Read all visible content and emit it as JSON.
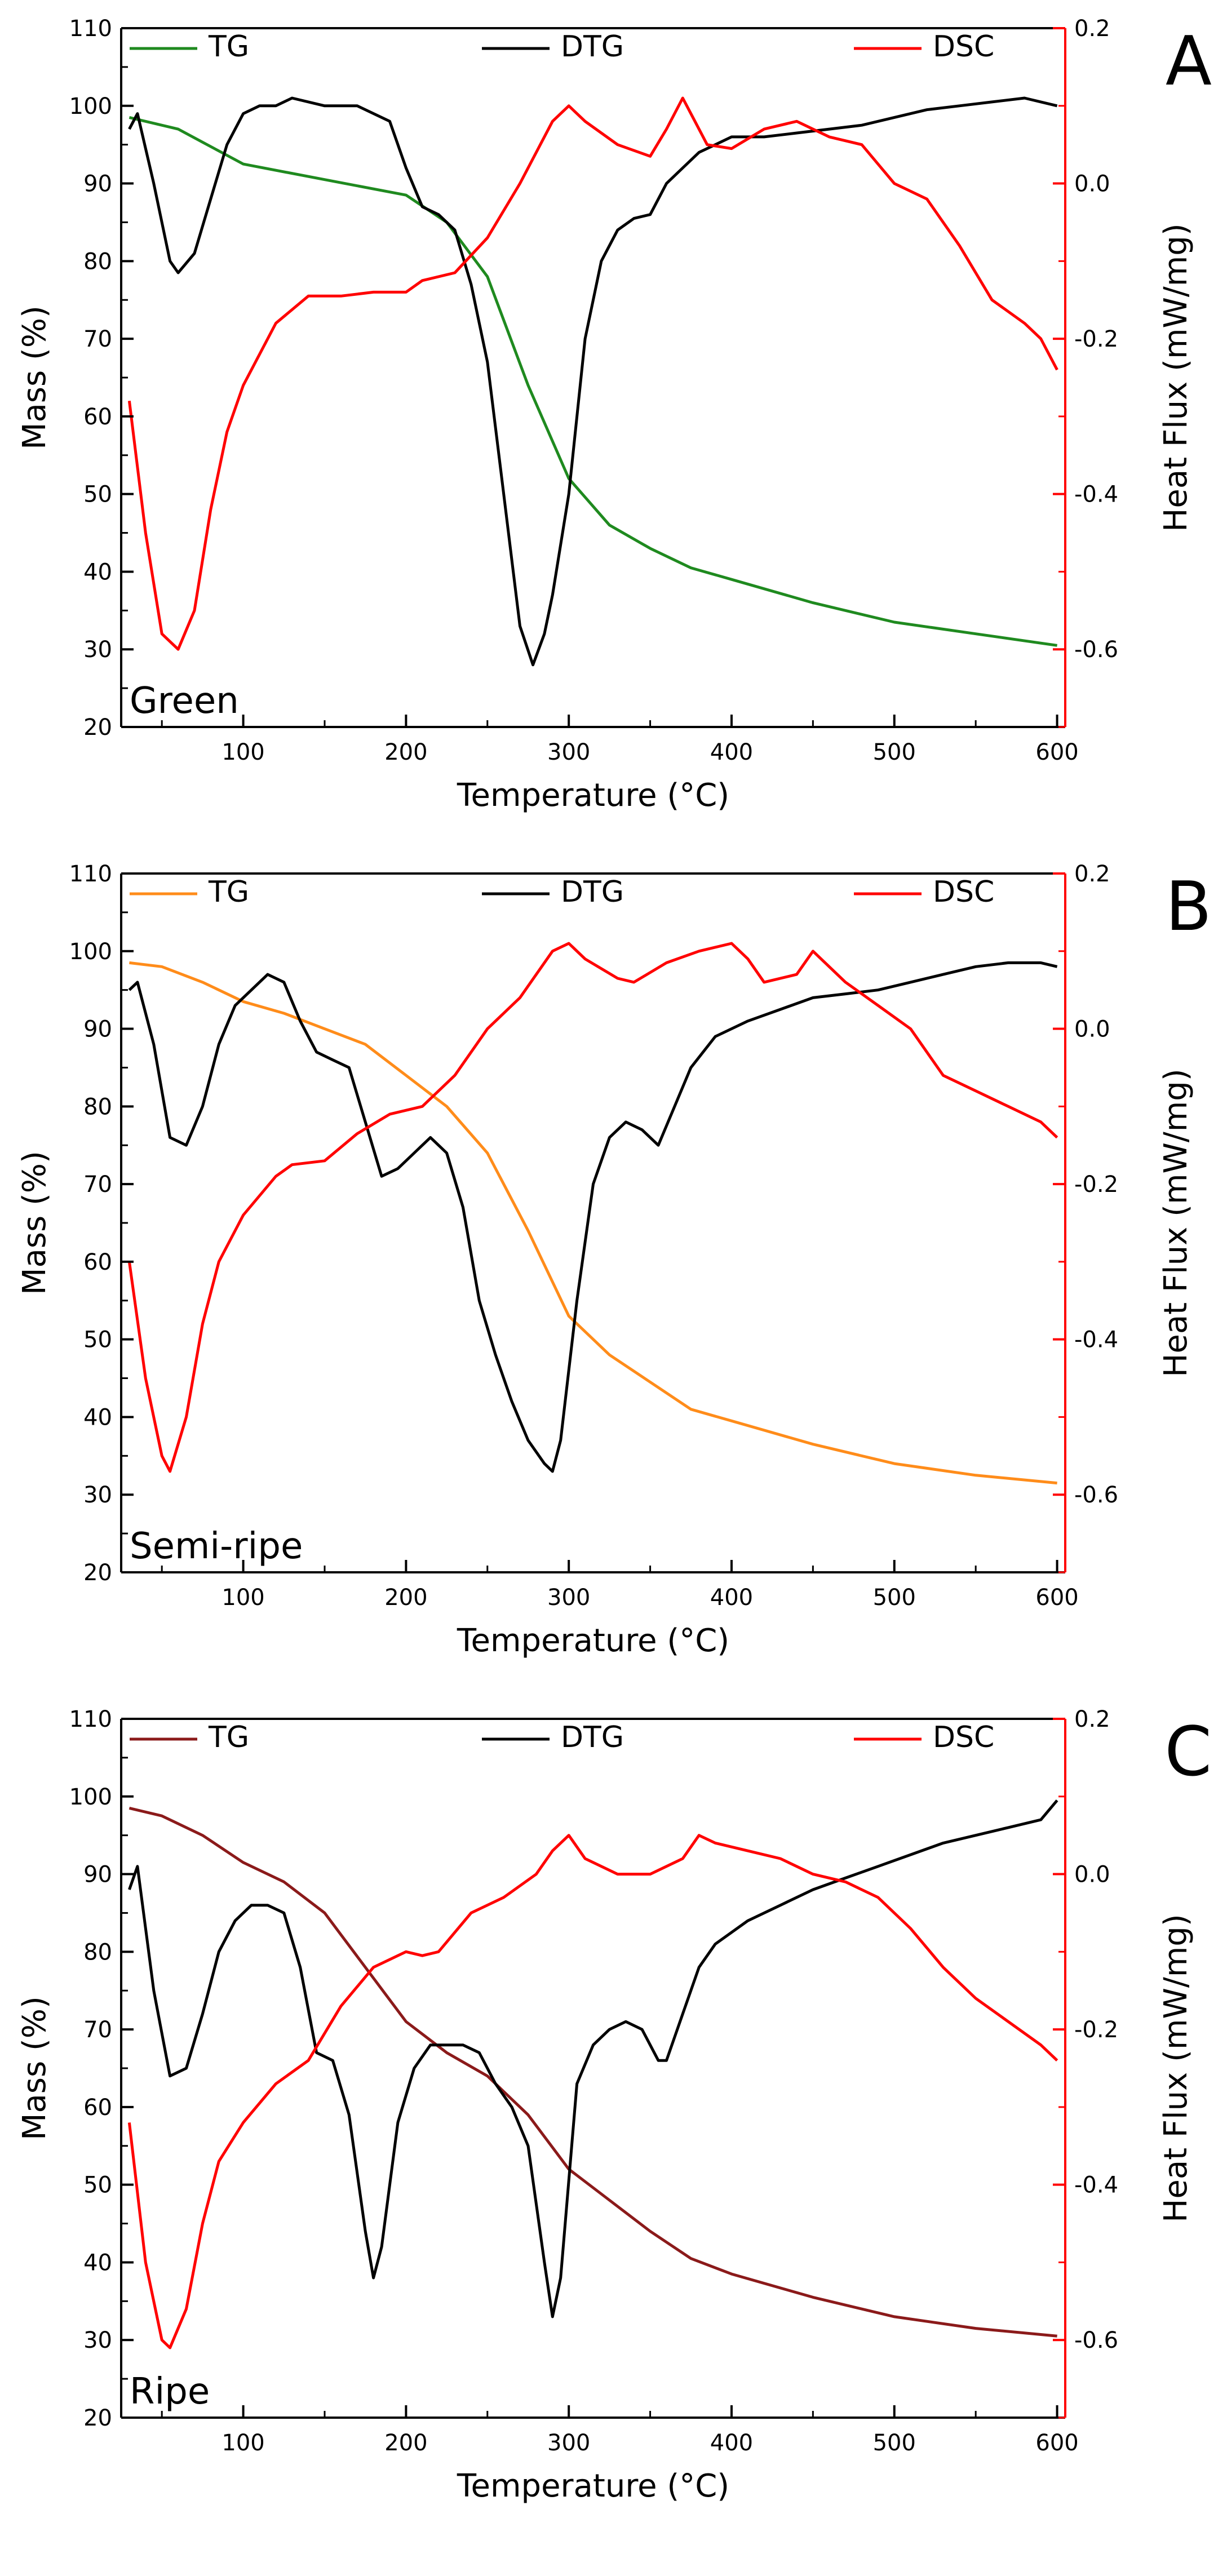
{
  "chart_data": [
    {
      "type": "line",
      "panel": "A",
      "annotation": "Green",
      "xlabel": "Temperature (°C)",
      "ylabel": "Mass (%)",
      "y2label": "Heat Flux (mW/mg)",
      "xlim": [
        25,
        605
      ],
      "ylim": [
        20,
        110
      ],
      "y2lim": [
        -0.7,
        0.2
      ],
      "x_ticks": [
        100,
        200,
        300,
        400,
        500,
        600
      ],
      "y_ticks": [
        20,
        30,
        40,
        50,
        60,
        70,
        80,
        90,
        100,
        110
      ],
      "y2_ticks": [
        -0.6,
        -0.4,
        -0.2,
        0.0,
        0.2
      ],
      "y2_tick_labels": [
        "-0.6",
        "-0.4",
        "-0.2",
        "0.0",
        "0.2"
      ],
      "series": [
        {
          "name": "TG",
          "axis": "left",
          "color": "#1f8a1f",
          "x": [
            30,
            60,
            100,
            150,
            200,
            225,
            250,
            275,
            300,
            325,
            350,
            375,
            400,
            450,
            500,
            550,
            600
          ],
          "y": [
            98.5,
            97,
            92.5,
            90.5,
            88.5,
            85,
            78,
            64,
            52,
            46,
            43,
            40.5,
            39,
            36,
            33.5,
            32,
            30.5
          ]
        },
        {
          "name": "DTG",
          "axis": "left",
          "color": "#000000",
          "x": [
            30,
            35,
            45,
            55,
            60,
            70,
            80,
            90,
            100,
            110,
            120,
            130,
            150,
            170,
            190,
            200,
            210,
            220,
            230,
            240,
            250,
            260,
            270,
            278,
            285,
            290,
            300,
            310,
            320,
            330,
            340,
            350,
            360,
            370,
            380,
            390,
            400,
            420,
            440,
            460,
            480,
            500,
            520,
            540,
            560,
            580,
            600
          ],
          "y": [
            97,
            99,
            90,
            80,
            78.5,
            81,
            88,
            95,
            99,
            100,
            100,
            101,
            100,
            100,
            98,
            92,
            87,
            86,
            84,
            77,
            67,
            50,
            33,
            28,
            32,
            37,
            50,
            70,
            80,
            84,
            85.5,
            86,
            90,
            92,
            94,
            95,
            96,
            96,
            96.5,
            97,
            97.5,
            98.5,
            99.5,
            100,
            100.5,
            101,
            100
          ]
        },
        {
          "name": "DSC",
          "axis": "right",
          "color": "#ff0000",
          "x": [
            30,
            40,
            50,
            60,
            70,
            80,
            90,
            100,
            120,
            140,
            160,
            180,
            200,
            210,
            230,
            250,
            270,
            290,
            300,
            310,
            330,
            350,
            360,
            370,
            375,
            385,
            400,
            420,
            440,
            460,
            480,
            500,
            520,
            540,
            560,
            580,
            590,
            600
          ],
          "y": [
            -0.28,
            -0.45,
            -0.58,
            -0.6,
            -0.55,
            -0.42,
            -0.32,
            -0.26,
            -0.18,
            -0.145,
            -0.145,
            -0.14,
            -0.14,
            -0.125,
            -0.115,
            -0.07,
            0.0,
            0.08,
            0.1,
            0.08,
            0.05,
            0.035,
            0.07,
            0.11,
            0.09,
            0.05,
            0.045,
            0.07,
            0.08,
            0.06,
            0.05,
            0.0,
            -0.02,
            -0.08,
            -0.15,
            -0.18,
            -0.2,
            -0.24
          ]
        }
      ]
    },
    {
      "type": "line",
      "panel": "B",
      "annotation": "Semi-ripe",
      "xlabel": "Temperature (°C)",
      "ylabel": "Mass (%)",
      "y2label": "Heat Flux (mW/mg)",
      "xlim": [
        25,
        605
      ],
      "ylim": [
        20,
        110
      ],
      "y2lim": [
        -0.7,
        0.2
      ],
      "x_ticks": [
        100,
        200,
        300,
        400,
        500,
        600
      ],
      "y_ticks": [
        20,
        30,
        40,
        50,
        60,
        70,
        80,
        90,
        100,
        110
      ],
      "y2_ticks": [
        -0.6,
        -0.4,
        -0.2,
        0.0,
        0.2
      ],
      "y2_tick_labels": [
        "-0.6",
        "-0.4",
        "-0.2",
        "0.0",
        "0.2"
      ],
      "series": [
        {
          "name": "TG",
          "axis": "left",
          "color": "#ff8c1a",
          "x": [
            30,
            50,
            75,
            100,
            125,
            150,
            175,
            200,
            225,
            250,
            275,
            300,
            325,
            350,
            375,
            400,
            450,
            500,
            550,
            600
          ],
          "y": [
            98.5,
            98,
            96,
            93.5,
            92,
            90,
            88,
            84,
            80,
            74,
            64,
            53,
            48,
            44.5,
            41,
            39.5,
            36.5,
            34,
            32.5,
            31.5
          ]
        },
        {
          "name": "DTG",
          "axis": "left",
          "color": "#000000",
          "x": [
            30,
            35,
            45,
            55,
            65,
            75,
            85,
            95,
            105,
            115,
            125,
            135,
            145,
            155,
            165,
            175,
            185,
            195,
            205,
            215,
            225,
            235,
            245,
            255,
            265,
            275,
            285,
            290,
            295,
            305,
            315,
            325,
            335,
            345,
            355,
            365,
            375,
            390,
            410,
            430,
            450,
            470,
            490,
            510,
            530,
            550,
            570,
            590,
            600
          ],
          "y": [
            95,
            96,
            88,
            76,
            75,
            80,
            88,
            93,
            95,
            97,
            96,
            91,
            87,
            86,
            85,
            78,
            71,
            72,
            74,
            76,
            74,
            67,
            55,
            48,
            42,
            37,
            34,
            33,
            37,
            55,
            70,
            76,
            78,
            77,
            75,
            80,
            85,
            89,
            91,
            92.5,
            94,
            94.5,
            95,
            96,
            97,
            98,
            98.5,
            98.5,
            98
          ]
        },
        {
          "name": "DSC",
          "axis": "right",
          "color": "#ff0000",
          "x": [
            30,
            40,
            50,
            55,
            65,
            75,
            85,
            100,
            120,
            130,
            150,
            170,
            190,
            210,
            230,
            250,
            270,
            290,
            300,
            310,
            330,
            340,
            360,
            380,
            400,
            410,
            420,
            440,
            450,
            470,
            490,
            510,
            530,
            550,
            570,
            590,
            600
          ],
          "y": [
            -0.3,
            -0.45,
            -0.55,
            -0.57,
            -0.5,
            -0.38,
            -0.3,
            -0.24,
            -0.19,
            -0.175,
            -0.17,
            -0.135,
            -0.11,
            -0.1,
            -0.06,
            0.0,
            0.04,
            0.1,
            0.11,
            0.09,
            0.065,
            0.06,
            0.085,
            0.1,
            0.11,
            0.09,
            0.06,
            0.07,
            0.1,
            0.06,
            0.03,
            0.0,
            -0.06,
            -0.08,
            -0.1,
            -0.12,
            -0.14
          ]
        }
      ]
    },
    {
      "type": "line",
      "panel": "C",
      "annotation": "Ripe",
      "xlabel": "Temperature (°C)",
      "ylabel": "Mass (%)",
      "y2label": "Heat Flux (mW/mg)",
      "xlim": [
        25,
        605
      ],
      "ylim": [
        20,
        110
      ],
      "y2lim": [
        -0.7,
        0.2
      ],
      "x_ticks": [
        100,
        200,
        300,
        400,
        500,
        600
      ],
      "y_ticks": [
        20,
        30,
        40,
        50,
        60,
        70,
        80,
        90,
        100,
        110
      ],
      "y2_ticks": [
        -0.6,
        -0.4,
        -0.2,
        0.0,
        0.2
      ],
      "y2_tick_labels": [
        "-0.6",
        "-0.4",
        "-0.2",
        "0.0",
        "0.2"
      ],
      "series": [
        {
          "name": "TG",
          "axis": "left",
          "color": "#8b1a1a",
          "x": [
            30,
            50,
            75,
            100,
            125,
            150,
            175,
            200,
            225,
            250,
            275,
            300,
            325,
            350,
            375,
            400,
            450,
            500,
            550,
            600
          ],
          "y": [
            98.5,
            97.5,
            95,
            91.5,
            89,
            85,
            78,
            71,
            67,
            64,
            59,
            52,
            48,
            44,
            40.5,
            38.5,
            35.5,
            33,
            31.5,
            30.5
          ]
        },
        {
          "name": "DTG",
          "axis": "left",
          "color": "#000000",
          "x": [
            30,
            35,
            45,
            55,
            65,
            75,
            85,
            95,
            105,
            115,
            125,
            135,
            145,
            155,
            165,
            175,
            180,
            185,
            195,
            205,
            215,
            225,
            235,
            245,
            255,
            265,
            275,
            285,
            290,
            295,
            305,
            315,
            325,
            335,
            345,
            355,
            360,
            370,
            380,
            390,
            410,
            430,
            450,
            470,
            490,
            510,
            530,
            550,
            570,
            590,
            600
          ],
          "y": [
            88,
            91,
            75,
            64,
            65,
            72,
            80,
            84,
            86,
            86,
            85,
            78,
            67,
            66,
            59,
            44,
            38,
            42,
            58,
            65,
            68,
            68,
            68,
            67,
            63,
            60,
            55,
            40,
            33,
            38,
            63,
            68,
            70,
            71,
            70,
            66,
            66,
            72,
            78,
            81,
            84,
            86,
            88,
            89.5,
            91,
            92.5,
            94,
            95,
            96,
            97,
            99.5
          ]
        },
        {
          "name": "DSC",
          "axis": "right",
          "color": "#ff0000",
          "x": [
            30,
            40,
            50,
            55,
            65,
            75,
            85,
            100,
            120,
            140,
            160,
            180,
            200,
            210,
            220,
            240,
            260,
            280,
            290,
            300,
            310,
            330,
            350,
            370,
            380,
            390,
            410,
            430,
            450,
            470,
            490,
            510,
            530,
            550,
            570,
            590,
            600
          ],
          "y": [
            -0.32,
            -0.5,
            -0.6,
            -0.61,
            -0.56,
            -0.45,
            -0.37,
            -0.32,
            -0.27,
            -0.24,
            -0.17,
            -0.12,
            -0.1,
            -0.105,
            -0.1,
            -0.05,
            -0.03,
            0.0,
            0.03,
            0.05,
            0.02,
            0.0,
            0.0,
            0.02,
            0.05,
            0.04,
            0.03,
            0.02,
            0.0,
            -0.01,
            -0.03,
            -0.07,
            -0.12,
            -0.16,
            -0.19,
            -0.22,
            -0.24
          ]
        }
      ]
    }
  ]
}
